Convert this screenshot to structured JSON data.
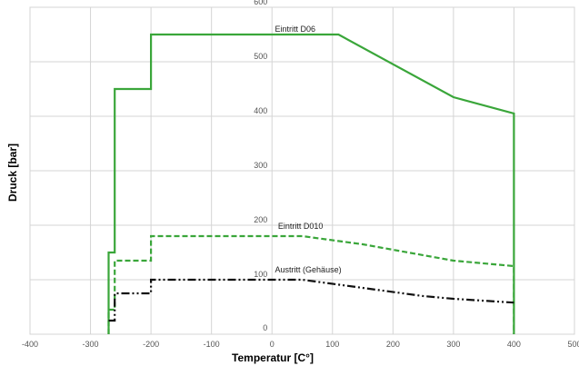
{
  "chart_data": {
    "type": "line",
    "title": "",
    "xlabel": "Temperatur  [C°]",
    "ylabel": "Druck [bar]",
    "xlim": [
      -400,
      500
    ],
    "ylim": [
      0,
      600
    ],
    "x_ticks": [
      "-400",
      "-300",
      "-200",
      "-100",
      "0",
      "100",
      "200",
      "300",
      "400",
      "500"
    ],
    "y_ticks": [
      "0",
      "100",
      "200",
      "300",
      "400",
      "500",
      "600"
    ],
    "grid": true,
    "colors": {
      "green": "#3aa63a",
      "black": "#111111",
      "grid": "#d4d4d4"
    },
    "series": [
      {
        "name": "Eintritt D06",
        "style": "solid",
        "color": "#3aa63a",
        "points": [
          [
            -270,
            0
          ],
          [
            -270,
            150
          ],
          [
            -260,
            150
          ],
          [
            -260,
            450
          ],
          [
            -200,
            450
          ],
          [
            -200,
            550
          ],
          [
            110,
            550
          ],
          [
            300,
            435
          ],
          [
            400,
            405
          ],
          [
            400,
            0
          ]
        ]
      },
      {
        "name": "Eintritt D010",
        "style": "dashed",
        "color": "#3aa63a",
        "points": [
          [
            -270,
            0
          ],
          [
            -270,
            45
          ],
          [
            -260,
            45
          ],
          [
            -260,
            135
          ],
          [
            -200,
            135
          ],
          [
            -200,
            180
          ],
          [
            50,
            180
          ],
          [
            150,
            165
          ],
          [
            300,
            135
          ],
          [
            400,
            125
          ],
          [
            400,
            0
          ]
        ]
      },
      {
        "name": "Austritt (Gehäuse)",
        "style": "dashdot",
        "color": "#111111",
        "points": [
          [
            -270,
            25
          ],
          [
            -260,
            25
          ],
          [
            -260,
            75
          ],
          [
            -200,
            75
          ],
          [
            -200,
            100
          ],
          [
            50,
            100
          ],
          [
            150,
            85
          ],
          [
            250,
            70
          ],
          [
            300,
            65
          ],
          [
            400,
            58
          ]
        ]
      }
    ],
    "annotations": [
      {
        "text": "Eintritt D06",
        "x": 5,
        "y": 555
      },
      {
        "text": "Eintritt D010",
        "x": 10,
        "y": 193
      },
      {
        "text": "Austritt (Gehäuse)",
        "x": 5,
        "y": 113
      }
    ]
  }
}
